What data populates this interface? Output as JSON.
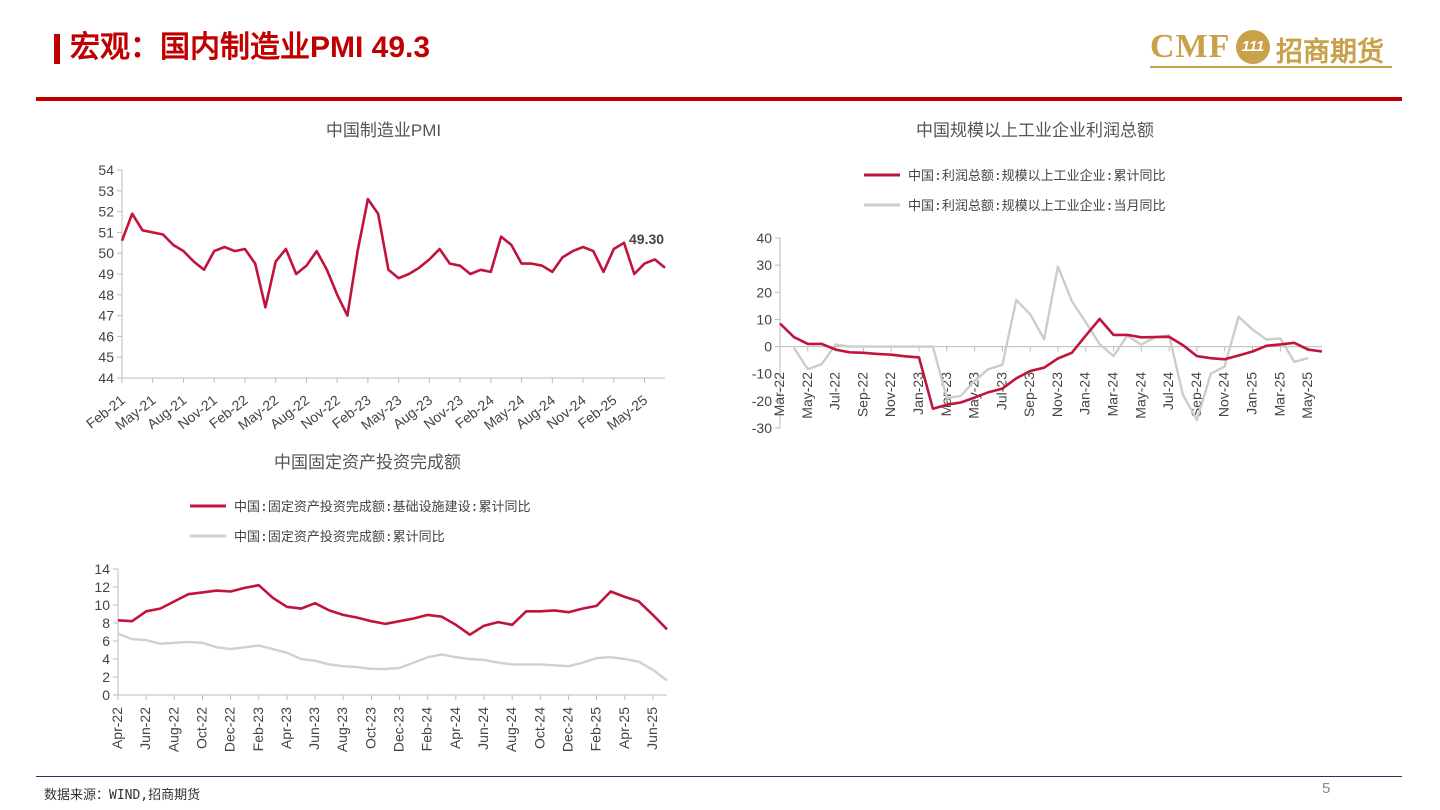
{
  "header": {
    "title": "宏观：国内制造业PMI 49.3"
  },
  "logo": {
    "brand": "CMF",
    "badge": "111",
    "name": "招商期货",
    "primary_color": "#c00000",
    "gold_color": "#c9a14a"
  },
  "footer": {
    "source": "数据来源：WIND,招商期货",
    "page": "5"
  },
  "chart_data": [
    {
      "id": "pmi",
      "type": "line",
      "title": "中国制造业PMI",
      "ylim": [
        44,
        54
      ],
      "yticks": [
        44,
        45,
        46,
        47,
        48,
        49,
        50,
        51,
        52,
        53,
        54
      ],
      "xticks": [
        "Feb-21",
        "May-21",
        "Aug-21",
        "Nov-21",
        "Feb-22",
        "May-22",
        "Aug-22",
        "Nov-22",
        "Feb-23",
        "May-23",
        "Aug-23",
        "Nov-23",
        "Feb-24",
        "May-24",
        "Aug-24",
        "Nov-24",
        "Feb-25",
        "May-25"
      ],
      "annotation": "49.30",
      "series": [
        {
          "color": "#c0143c",
          "values": [
            50.6,
            51.9,
            51.1,
            51.0,
            50.9,
            50.4,
            50.1,
            49.6,
            49.2,
            50.1,
            50.3,
            50.1,
            50.2,
            49.5,
            47.4,
            49.6,
            50.2,
            49.0,
            49.4,
            50.1,
            49.2,
            48.0,
            47.0,
            50.1,
            52.6,
            51.9,
            49.2,
            48.8,
            49.0,
            49.3,
            49.7,
            50.2,
            49.5,
            49.4,
            49.0,
            49.2,
            49.1,
            50.8,
            50.4,
            49.5,
            49.5,
            49.4,
            49.1,
            49.8,
            50.1,
            50.3,
            50.1,
            49.1,
            50.2,
            50.5,
            49.0,
            49.5,
            49.7,
            49.3
          ]
        }
      ]
    },
    {
      "id": "profit",
      "type": "line",
      "title": "中国规模以上工业企业利润总额",
      "ylim": [
        -30,
        40
      ],
      "yticks": [
        -30,
        -20,
        -10,
        0,
        10,
        20,
        30,
        40
      ],
      "xticks": [
        "Mar-22",
        "May-22",
        "Jul-22",
        "Sep-22",
        "Nov-22",
        "Jan-23",
        "Mar-23",
        "May-23",
        "Jul-23",
        "Sep-23",
        "Nov-23",
        "Jan-24",
        "Mar-24",
        "May-24",
        "Jul-24",
        "Sep-24",
        "Nov-24",
        "Jan-25",
        "Mar-25",
        "May-25"
      ],
      "series": [
        {
          "name": "中国:利润总额:规模以上工业企业:累计同比",
          "color": "#c0143c",
          "values": [
            8.5,
            3.5,
            1.0,
            1.0,
            -1.1,
            -2.1,
            -2.3,
            -2.7,
            -3.0,
            -3.6,
            -4.0,
            -22.9,
            -21.4,
            -20.6,
            -18.8,
            -16.8,
            -15.5,
            -11.7,
            -9.0,
            -7.8,
            -4.4,
            -2.3,
            4.0,
            10.2,
            4.3,
            4.3,
            3.4,
            3.5,
            3.6,
            0.5,
            -3.5,
            -4.3,
            -4.7,
            -3.3,
            -1.8,
            0.3,
            0.8,
            1.4,
            -1.1,
            -1.8
          ],
          "start": 0
        },
        {
          "name": "中国:利润总额:规模以上工业企业:当月同比",
          "color": "#cccccc",
          "values": [
            -0.4,
            -8.3,
            -6.5,
            0.8,
            0.0,
            0.0,
            0.0,
            0.0,
            0.0,
            0.0,
            0.0,
            -19.0,
            -18.2,
            -12.6,
            -8.3,
            -6.7,
            17.2,
            11.9,
            2.7,
            29.5,
            16.8,
            9.0,
            0.9,
            -3.5,
            4.0,
            0.7,
            3.5,
            4.1,
            -17.8,
            -27.1,
            -10.0,
            -7.3,
            11.0,
            6.3,
            2.6,
            3.0,
            -5.6,
            -4.3
          ],
          "start": 1
        }
      ]
    },
    {
      "id": "fai",
      "type": "line",
      "title": "中国固定资产投资完成额",
      "ylim": [
        0,
        14
      ],
      "yticks": [
        0,
        2,
        4,
        6,
        8,
        10,
        12,
        14
      ],
      "xticks": [
        "Apr-22",
        "Jun-22",
        "Aug-22",
        "Oct-22",
        "Dec-22",
        "Feb-23",
        "Apr-23",
        "Jun-23",
        "Aug-23",
        "Oct-23",
        "Dec-23",
        "Feb-24",
        "Apr-24",
        "Jun-24",
        "Aug-24",
        "Oct-24",
        "Dec-24",
        "Feb-25",
        "Apr-25",
        "Jun-25"
      ],
      "series": [
        {
          "name": "中国:固定资产投资完成额:基础设施建设:累计同比",
          "color": "#c0143c",
          "values": [
            8.3,
            8.2,
            9.3,
            9.6,
            10.4,
            11.2,
            11.4,
            11.6,
            11.5,
            11.9,
            12.2,
            10.8,
            9.8,
            9.6,
            10.2,
            9.4,
            8.9,
            8.6,
            8.2,
            7.9,
            8.2,
            8.5,
            8.9,
            8.7,
            7.8,
            6.7,
            7.7,
            8.1,
            7.8,
            9.3,
            9.3,
            9.4,
            9.2,
            9.6,
            9.9,
            11.5,
            10.9,
            10.4,
            8.9,
            7.3
          ]
        },
        {
          "name": "中国:固定资产投资完成额:累计同比",
          "color": "#d0d0d0",
          "values": [
            6.8,
            6.2,
            6.1,
            5.7,
            5.8,
            5.9,
            5.8,
            5.3,
            5.1,
            5.3,
            5.5,
            5.1,
            4.7,
            4.0,
            3.8,
            3.4,
            3.2,
            3.1,
            2.9,
            2.9,
            3.0,
            3.6,
            4.2,
            4.5,
            4.2,
            4.0,
            3.9,
            3.6,
            3.4,
            3.4,
            3.4,
            3.3,
            3.2,
            3.6,
            4.1,
            4.2,
            4.0,
            3.7,
            2.8,
            1.6
          ]
        }
      ]
    }
  ]
}
